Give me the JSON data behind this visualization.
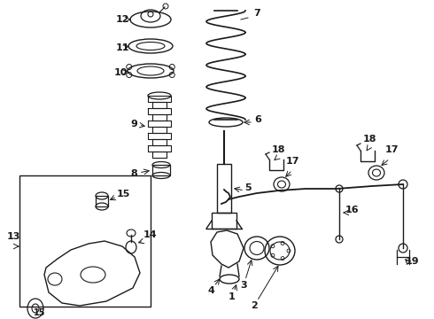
{
  "bg_color": "#ffffff",
  "line_color": "#1a1a1a",
  "font_size": 8,
  "bold_font": true
}
